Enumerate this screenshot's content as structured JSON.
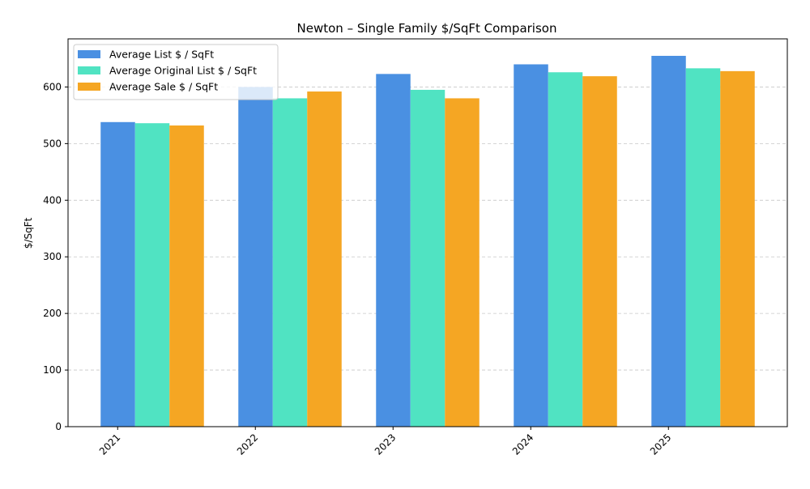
{
  "chart_data": {
    "type": "bar",
    "title": "Newton – Single Family $/SqFt Comparison",
    "xlabel": "",
    "ylabel": "$/SqFt",
    "categories": [
      "2021",
      "2022",
      "2023",
      "2024",
      "2025"
    ],
    "series": [
      {
        "name": "Average List $ / SqFt",
        "color": "#4a90e2",
        "values": [
          538,
          600,
          623,
          640,
          655
        ]
      },
      {
        "name": "Average Original List $ / SqFt",
        "color": "#50e3c2",
        "values": [
          536,
          580,
          595,
          626,
          633
        ]
      },
      {
        "name": "Average Sale $ / SqFt",
        "color": "#f5a623",
        "values": [
          532,
          592,
          580,
          619,
          628
        ]
      }
    ],
    "ylim": [
      0,
      685
    ],
    "yticks": [
      0,
      100,
      200,
      300,
      400,
      500,
      600
    ],
    "grid": "y-dashed",
    "legend_position": "top-left"
  }
}
